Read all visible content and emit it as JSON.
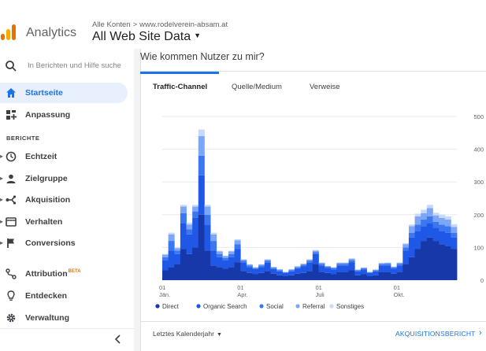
{
  "header": {
    "app_name": "Analytics",
    "breadcrumb_account": "Alle Konten",
    "breadcrumb_separator": ">",
    "breadcrumb_property": "www.rodelverein-absam.at",
    "view_name": "All Web Site Data"
  },
  "sidebar": {
    "search_placeholder": "In Berichten und Hilfe suche",
    "section_reports": "BERICHTE",
    "items": [
      {
        "label": "Startseite",
        "icon": "home-icon",
        "active": true
      },
      {
        "label": "Anpassung",
        "icon": "dashboard-icon"
      },
      {
        "label": "Echtzeit",
        "icon": "clock-icon"
      },
      {
        "label": "Zielgruppe",
        "icon": "person-icon"
      },
      {
        "label": "Akquisition",
        "icon": "acquisition-icon"
      },
      {
        "label": "Verhalten",
        "icon": "behavior-icon"
      },
      {
        "label": "Conversions",
        "icon": "flag-icon"
      },
      {
        "label": "Attribution",
        "badge": "BETA",
        "icon": "attribution-icon"
      },
      {
        "label": "Entdecken",
        "icon": "lightbulb-icon"
      },
      {
        "label": "Verwaltung",
        "icon": "gear-icon"
      }
    ]
  },
  "card": {
    "title": "Wie kommen Nutzer zu mir?",
    "tabs": [
      {
        "label": "Traffic-Channel",
        "active": true
      },
      {
        "label": "Quelle/Medium"
      },
      {
        "label": "Verweise"
      }
    ],
    "footer": {
      "date_range": "Letztes Kalenderjahr",
      "report_link": "AKQUISITIONSBERICHT"
    }
  },
  "colors": {
    "accent": "#1a73e8",
    "direct": "#1638a8",
    "organic": "#1f57e6",
    "social": "#3b78f0",
    "referral": "#7ea6f6",
    "other": "#c6d8fb"
  },
  "chart_data": {
    "type": "area",
    "stacked": true,
    "ylim": [
      0,
      500
    ],
    "y_ticks": [
      "500",
      "400",
      "300",
      "200",
      "100",
      "0"
    ],
    "x_ticks": [
      {
        "line1": "01",
        "line2": "Jän."
      },
      {
        "line1": "01",
        "line2": "Apr."
      },
      {
        "line1": "01",
        "line2": "Juli"
      },
      {
        "line1": "01",
        "line2": "Okt."
      }
    ],
    "x_tick_index": [
      0,
      13,
      26,
      39
    ],
    "series": [
      {
        "name": "Direct",
        "values": [
          30,
          40,
          50,
          95,
          80,
          100,
          200,
          90,
          45,
          40,
          35,
          40,
          55,
          28,
          22,
          18,
          22,
          28,
          20,
          15,
          12,
          15,
          20,
          22,
          28,
          50,
          25,
          22,
          18,
          25,
          25,
          30,
          15,
          18,
          12,
          15,
          25,
          25,
          20,
          25,
          50,
          70,
          95,
          120,
          130,
          120,
          110,
          105,
          95
        ]
      },
      {
        "name": "Organic Search",
        "values": [
          30,
          50,
          30,
          80,
          60,
          90,
          120,
          80,
          45,
          30,
          25,
          30,
          40,
          25,
          18,
          16,
          18,
          25,
          14,
          12,
          10,
          12,
          15,
          20,
          25,
          30,
          20,
          16,
          15,
          20,
          20,
          25,
          12,
          15,
          10,
          12,
          20,
          20,
          15,
          20,
          40,
          60,
          55,
          45,
          45,
          40,
          40,
          40,
          35
        ]
      },
      {
        "name": "Social",
        "values": [
          10,
          30,
          10,
          30,
          15,
          20,
          60,
          30,
          30,
          10,
          8,
          10,
          15,
          6,
          5,
          3,
          5,
          6,
          4,
          4,
          2,
          4,
          4,
          5,
          6,
          6,
          5,
          3,
          4,
          5,
          5,
          6,
          3,
          3,
          2,
          3,
          4,
          5,
          4,
          5,
          10,
          15,
          20,
          20,
          20,
          18,
          20,
          20,
          15
        ]
      },
      {
        "name": "Referral",
        "values": [
          8,
          20,
          8,
          20,
          15,
          15,
          60,
          25,
          20,
          8,
          6,
          8,
          12,
          4,
          3,
          2,
          3,
          4,
          2,
          2,
          1,
          2,
          3,
          3,
          4,
          4,
          3,
          2,
          2,
          3,
          3,
          4,
          2,
          2,
          1,
          2,
          3,
          3,
          2,
          3,
          10,
          20,
          25,
          20,
          25,
          20,
          20,
          20,
          18
        ]
      },
      {
        "name": "Sonstiges",
        "values": [
          2,
          5,
          2,
          5,
          5,
          5,
          20,
          5,
          5,
          2,
          1,
          2,
          3,
          1,
          1,
          1,
          1,
          1,
          1,
          1,
          0,
          1,
          1,
          1,
          1,
          2,
          1,
          1,
          1,
          1,
          1,
          2,
          1,
          1,
          0,
          1,
          1,
          1,
          1,
          1,
          3,
          5,
          8,
          10,
          10,
          8,
          10,
          10,
          8
        ]
      }
    ]
  }
}
